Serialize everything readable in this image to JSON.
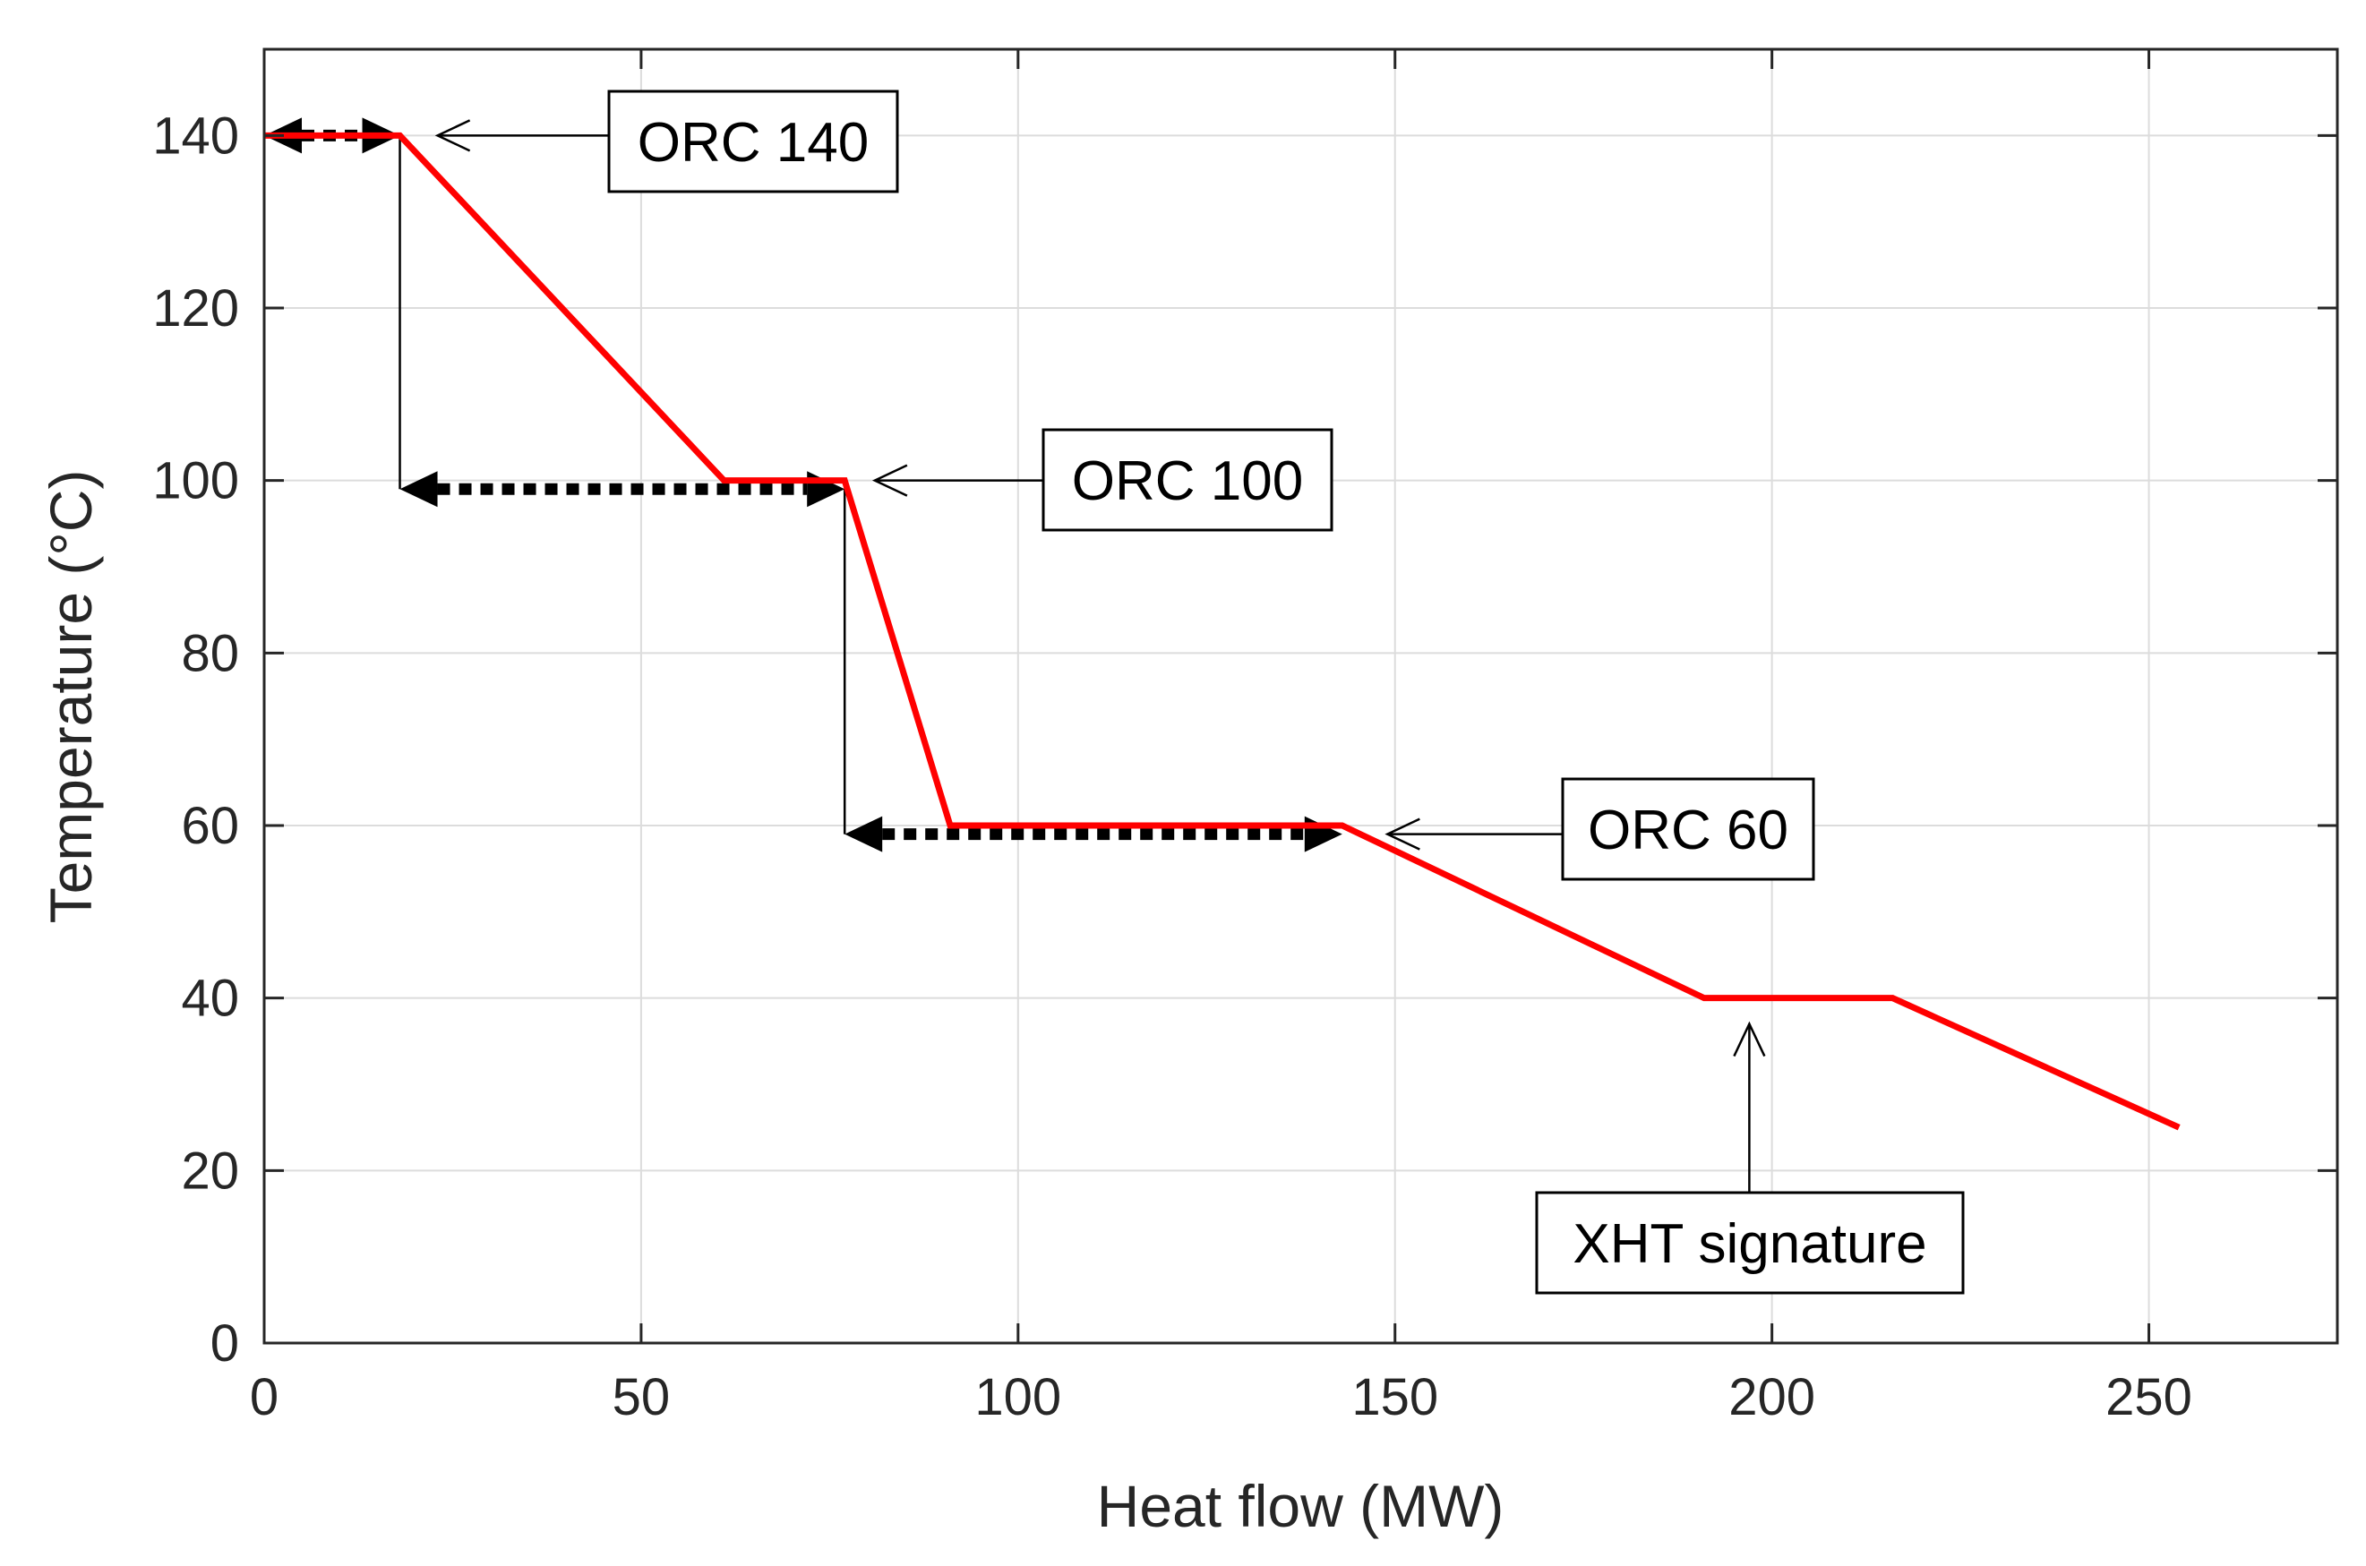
{
  "chart_data": {
    "type": "line",
    "title": "",
    "xlabel": "Heat flow (MW)",
    "ylabel": "Temperature (°C)",
    "xlim": [
      0,
      275
    ],
    "ylim": [
      0,
      150
    ],
    "grid": true,
    "x_ticks": [
      0,
      50,
      100,
      150,
      200,
      250
    ],
    "y_ticks": [
      0,
      20,
      40,
      60,
      80,
      100,
      120,
      140
    ],
    "series": [
      {
        "name": "XHT signature",
        "color": "#ff0000",
        "x": [
          0,
          18,
          61,
          77,
          91,
          143,
          191,
          216,
          254
        ],
        "y": [
          140,
          140,
          100,
          100,
          60,
          60,
          40,
          40,
          25
        ]
      }
    ],
    "annotations": [
      {
        "label": "ORC 140",
        "points_to": {
          "x": 23,
          "y": 140
        }
      },
      {
        "label": "ORC 100",
        "points_to": {
          "x": 81,
          "y": 100
        }
      },
      {
        "label": "ORC 60",
        "points_to": {
          "x": 149,
          "y": 59
        }
      },
      {
        "label": "XHT signature",
        "points_to": {
          "x": 197,
          "y": 37
        }
      }
    ],
    "heat_extraction_ranges": [
      {
        "name": "ORC 140",
        "x_start": 0,
        "x_end": 18,
        "y": 140
      },
      {
        "name": "ORC 100",
        "x_start": 18,
        "x_end": 77,
        "y": 99
      },
      {
        "name": "ORC 60",
        "x_start": 77,
        "x_end": 143,
        "y": 59
      }
    ]
  },
  "colors": {
    "curve": "#ff0000",
    "grid": "#dcdcdc",
    "frame": "#262626"
  }
}
